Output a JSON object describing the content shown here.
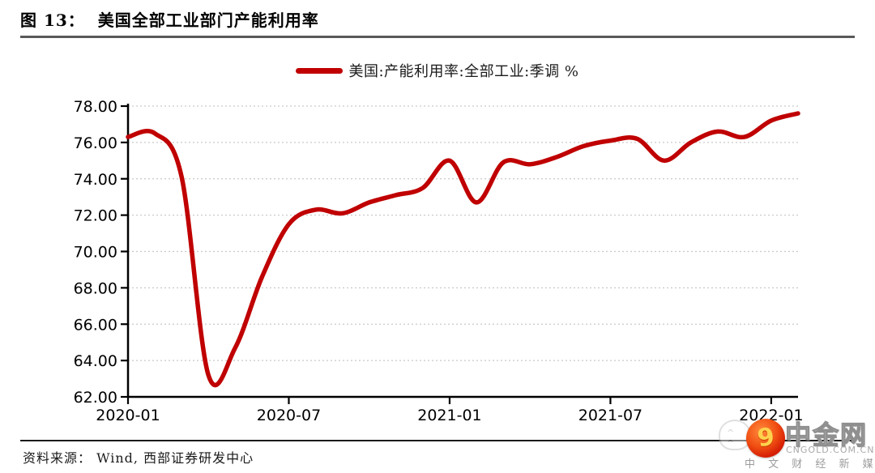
{
  "header": {
    "caption": "图 13：  美国全部工业部门产能利用率"
  },
  "legend": {
    "label": "美国:产能利用率:全部工业:季调 %"
  },
  "footer": {
    "source": "资料来源： Wind, 西部证券研发中心"
  },
  "watermark": {
    "logo_glyph": "9",
    "ghost_eyes": "^ ^",
    "name": "中金网",
    "domain": "CNGOLD.COM.CN",
    "tagline": "中 文 财 经 新 媒 体"
  },
  "colors": {
    "line": "#C00000",
    "grid": "#C9C9C9",
    "axis": "#000000",
    "caption_rule": "#595959",
    "tick_label": "#000000"
  },
  "chart_data": {
    "type": "line",
    "title": "美国全部工业部门产能利用率",
    "x": [
      "2020-01",
      "2020-02",
      "2020-03",
      "2020-04",
      "2020-05",
      "2020-06",
      "2020-07",
      "2020-08",
      "2020-09",
      "2020-10",
      "2020-11",
      "2020-12",
      "2021-01",
      "2021-02",
      "2021-03",
      "2021-04",
      "2021-05",
      "2021-06",
      "2021-07",
      "2021-08",
      "2021-09",
      "2021-10",
      "2021-11",
      "2021-12",
      "2022-01",
      "2022-02"
    ],
    "series": [
      {
        "name": "美国:产能利用率:全部工业:季调 %",
        "color": "#C00000",
        "values": [
          76.3,
          76.5,
          74.1,
          63.2,
          64.7,
          68.6,
          71.5,
          72.3,
          72.1,
          72.7,
          73.1,
          73.5,
          75.0,
          72.7,
          74.9,
          74.8,
          75.2,
          75.8,
          76.1,
          76.2,
          75.0,
          76.0,
          76.6,
          76.3,
          77.2,
          77.6
        ]
      }
    ],
    "ylim": [
      62,
      78
    ],
    "yticks": [
      62,
      64,
      66,
      68,
      70,
      72,
      74,
      76,
      78
    ],
    "ytick_labels": [
      "62.00",
      "64.00",
      "66.00",
      "68.00",
      "70.00",
      "72.00",
      "74.00",
      "76.00",
      "78.00"
    ],
    "xticks": [
      "2020-01",
      "2020-07",
      "2021-01",
      "2021-07",
      "2022-01"
    ],
    "grid": "horizontal-dotted",
    "legend_position": "top-center"
  }
}
